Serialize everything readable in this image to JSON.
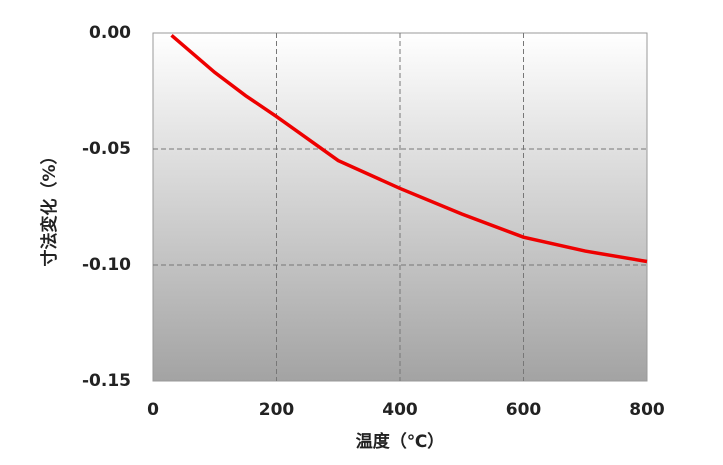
{
  "chart_data": {
    "type": "line",
    "x_label": "温度（℃）",
    "y_label": "寸法変化（%）",
    "xlim": [
      0,
      800
    ],
    "xticks": [
      0,
      200,
      400,
      600,
      800
    ],
    "ylim": [
      -0.15,
      0
    ],
    "yticks": [
      {
        "value": -0.15,
        "label": "-0.15"
      },
      {
        "value": -0.1,
        "label": "-0.10"
      },
      {
        "value": -0.05,
        "label": "-0.05"
      },
      {
        "value": 0,
        "label": "0.00"
      }
    ],
    "grid": true,
    "series": [
      {
        "color": "#ee0000",
        "x": [
          30,
          100,
          150,
          200,
          300,
          400,
          500,
          600,
          700,
          800
        ],
        "values": [
          -0.001,
          -0.017,
          -0.027,
          -0.036,
          -0.055,
          -0.067,
          -0.078,
          -0.088,
          -0.094,
          -0.0985
        ]
      }
    ]
  }
}
